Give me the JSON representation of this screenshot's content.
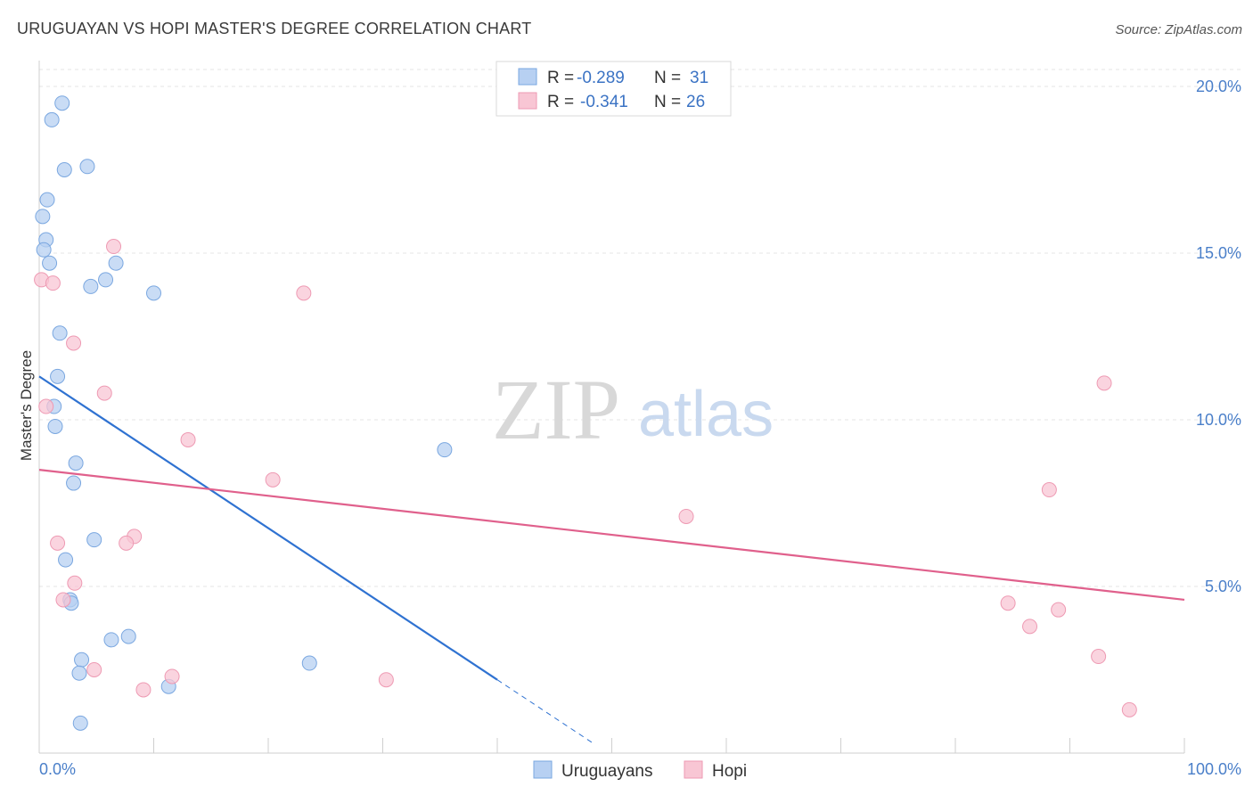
{
  "header": {
    "title": "URUGUAYAN VS HOPI MASTER'S DEGREE CORRELATION CHART",
    "source": "Source: ZipAtlas.com"
  },
  "legend": {
    "r_label": "R = ",
    "n_label": "N = ",
    "rows": [
      {
        "r": "-0.289",
        "n": "31",
        "color": "#b7d0f2",
        "stroke": "#7aa7e0"
      },
      {
        "r": "-0.341",
        "n": "26",
        "color": "#f8c6d4",
        "stroke": "#ee9ab3"
      }
    ]
  },
  "bottom_legend": [
    "Uruguayans",
    "Hopi"
  ],
  "watermark": {
    "zip": "ZIP",
    "atlas": "atlas"
  },
  "chart_data": {
    "type": "scatter",
    "title": "URUGUAYAN VS HOPI MASTER'S DEGREE CORRELATION CHART",
    "xlabel": "",
    "ylabel": "Master's Degree",
    "xlim": [
      0,
      100
    ],
    "ylim": [
      0,
      20
    ],
    "x_tick_labels": [
      "0.0%",
      "100.0%"
    ],
    "y_ticks": [
      {
        "value": 5,
        "label": "5.0%"
      },
      {
        "value": 10,
        "label": "10.0%"
      },
      {
        "value": 15,
        "label": "15.0%"
      },
      {
        "value": 20,
        "label": "20.0%"
      }
    ],
    "series": [
      {
        "name": "Uruguayans",
        "color": "#b7d0f2",
        "stroke": "#7aa7e0",
        "line_color": "#2f72d1",
        "points": [
          [
            2.0,
            19.5
          ],
          [
            1.1,
            19.0
          ],
          [
            2.2,
            17.5
          ],
          [
            4.2,
            17.6
          ],
          [
            0.7,
            16.6
          ],
          [
            0.3,
            16.1
          ],
          [
            0.6,
            15.4
          ],
          [
            0.4,
            15.1
          ],
          [
            0.9,
            14.7
          ],
          [
            6.7,
            14.7
          ],
          [
            5.8,
            14.2
          ],
          [
            4.5,
            14.0
          ],
          [
            10.0,
            13.8
          ],
          [
            1.8,
            12.6
          ],
          [
            1.6,
            11.3
          ],
          [
            1.3,
            10.4
          ],
          [
            1.4,
            9.8
          ],
          [
            3.2,
            8.7
          ],
          [
            3.0,
            8.1
          ],
          [
            35.4,
            9.1
          ],
          [
            4.8,
            6.4
          ],
          [
            2.3,
            5.8
          ],
          [
            2.7,
            4.6
          ],
          [
            2.8,
            4.5
          ],
          [
            7.8,
            3.5
          ],
          [
            6.3,
            3.4
          ],
          [
            3.7,
            2.8
          ],
          [
            23.6,
            2.7
          ],
          [
            3.5,
            2.4
          ],
          [
            11.3,
            2.0
          ],
          [
            3.6,
            0.9
          ]
        ],
        "trend": {
          "x0": 0,
          "y0": 11.3,
          "x1": 40,
          "y1": 2.2,
          "dash_to_x": 48.5
        }
      },
      {
        "name": "Hopi",
        "color": "#f8c6d4",
        "stroke": "#ee9ab3",
        "line_color": "#e0608c",
        "points": [
          [
            0.2,
            14.2
          ],
          [
            1.2,
            14.1
          ],
          [
            6.5,
            15.2
          ],
          [
            23.1,
            13.8
          ],
          [
            3.0,
            12.3
          ],
          [
            5.7,
            10.8
          ],
          [
            0.6,
            10.4
          ],
          [
            13.0,
            9.4
          ],
          [
            20.4,
            8.2
          ],
          [
            93.0,
            11.1
          ],
          [
            88.2,
            7.9
          ],
          [
            56.5,
            7.1
          ],
          [
            8.3,
            6.5
          ],
          [
            1.6,
            6.3
          ],
          [
            7.6,
            6.3
          ],
          [
            3.1,
            5.1
          ],
          [
            2.1,
            4.6
          ],
          [
            84.6,
            4.5
          ],
          [
            89.0,
            4.3
          ],
          [
            86.5,
            3.8
          ],
          [
            92.5,
            2.9
          ],
          [
            4.8,
            2.5
          ],
          [
            11.6,
            2.3
          ],
          [
            30.3,
            2.2
          ],
          [
            9.1,
            1.9
          ],
          [
            95.2,
            1.3
          ]
        ],
        "trend": {
          "x0": 0,
          "y0": 8.5,
          "x1": 100,
          "y1": 4.6
        }
      }
    ]
  }
}
